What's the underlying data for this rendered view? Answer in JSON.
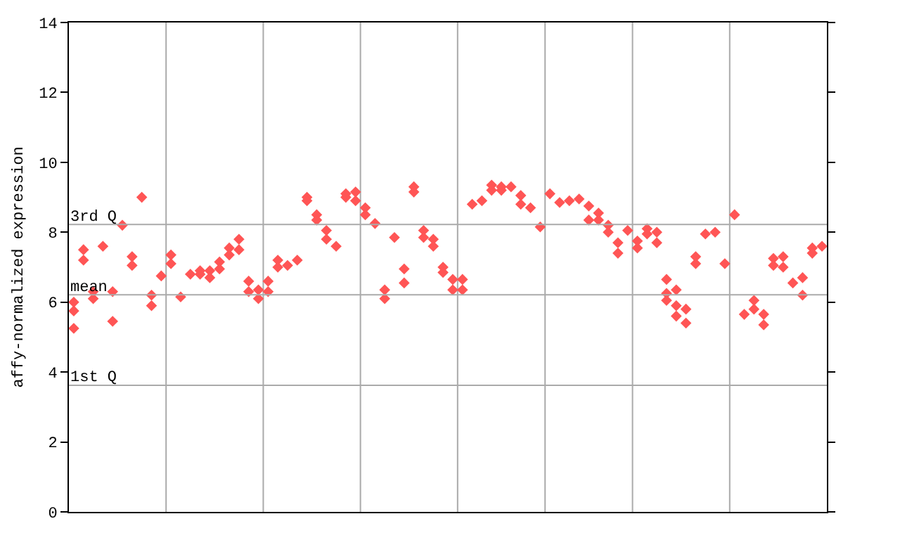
{
  "chart_data": {
    "type": "scatter",
    "ylabel": "affy-normalized expression",
    "categories": [
      null,
      null,
      null,
      null,
      null,
      null,
      null,
      null,
      null,
      null,
      null,
      null,
      null,
      null,
      null,
      null,
      null,
      null,
      null,
      null,
      null,
      null,
      null,
      null,
      null,
      null,
      null,
      null,
      null,
      null,
      null,
      null,
      null,
      null,
      null,
      null,
      null,
      null,
      null,
      null,
      null,
      null,
      null,
      null,
      null,
      null,
      null,
      null,
      null,
      null,
      null,
      null,
      null,
      null,
      null,
      null,
      null,
      null,
      null,
      null,
      null,
      null,
      null,
      null,
      null,
      null,
      null,
      null,
      null,
      null,
      null,
      null,
      null,
      null,
      null,
      null,
      null,
      null
    ],
    "ylim": [
      0,
      14
    ],
    "yticks": [
      0,
      2,
      4,
      6,
      8,
      10,
      12,
      14
    ],
    "tick_labels": "y",
    "marker": "diamond",
    "ref_lines": [
      {
        "axis": "y",
        "value": 8.22,
        "label": "3rd Q",
        "color": "#aaaaaa"
      },
      {
        "axis": "y",
        "value": 6.21,
        "label": "mean",
        "color": "#aaaaaa"
      },
      {
        "axis": "y",
        "value": 3.62,
        "label": "1st Q",
        "color": "#aaaaaa"
      }
    ],
    "series": [
      {
        "color": "#ff5555",
        "values": [
          6.0,
          7.5,
          6.1,
          7.6,
          6.3,
          8.2,
          7.3,
          9.0,
          6.2,
          6.75,
          7.35,
          6.15,
          6.8,
          6.8,
          6.9,
          7.15,
          7.35,
          7.8,
          6.6,
          6.1,
          6.6,
          7.2,
          7.05,
          7.2,
          9.0,
          8.5,
          8.05,
          7.6,
          9.0,
          9.15,
          8.7,
          8.25,
          6.35,
          7.85,
          6.95,
          9.3,
          8.05,
          7.8,
          7.0,
          6.65,
          6.65,
          8.8,
          8.9,
          9.35,
          9.3,
          9.3,
          9.05,
          8.7,
          8.15,
          9.1,
          8.85,
          8.9,
          8.95,
          8.75,
          8.55,
          8.2,
          7.7,
          8.05,
          7.75,
          8.1,
          8.0,
          6.65,
          6.35,
          5.8,
          7.3,
          7.95,
          8.0,
          7.1,
          8.5,
          5.65,
          6.05,
          5.65,
          7.25,
          7.3,
          6.55,
          6.7,
          7.55,
          7.6
        ]
      },
      {
        "color": "#ff5555",
        "values": [
          5.75,
          7.2,
          6.3,
          null,
          5.45,
          null,
          7.05,
          null,
          5.9,
          null,
          7.1,
          null,
          null,
          6.9,
          6.7,
          6.95,
          7.55,
          7.5,
          6.3,
          6.35,
          6.3,
          7.0,
          null,
          null,
          8.9,
          8.35,
          7.8,
          null,
          9.1,
          8.9,
          8.5,
          null,
          6.1,
          null,
          6.55,
          9.15,
          7.85,
          7.6,
          6.85,
          6.35,
          6.35,
          null,
          null,
          9.2,
          9.2,
          null,
          8.8,
          null,
          null,
          null,
          null,
          null,
          null,
          8.35,
          8.35,
          8.0,
          7.4,
          null,
          7.55,
          7.95,
          7.7,
          6.25,
          5.9,
          5.4,
          7.1,
          null,
          null,
          null,
          null,
          null,
          5.8,
          5.35,
          7.05,
          7.0,
          null,
          6.2,
          7.4,
          null
        ]
      },
      {
        "color": "#ff5555",
        "values": [
          5.25,
          null,
          null,
          null,
          null,
          null,
          null,
          null,
          null,
          null,
          null,
          null,
          null,
          null,
          null,
          null,
          null,
          null,
          null,
          null,
          null,
          null,
          null,
          null,
          null,
          null,
          null,
          null,
          null,
          null,
          null,
          null,
          null,
          null,
          null,
          null,
          null,
          null,
          null,
          null,
          null,
          null,
          null,
          null,
          null,
          null,
          null,
          null,
          null,
          null,
          null,
          null,
          null,
          null,
          null,
          null,
          null,
          null,
          null,
          null,
          null,
          6.05,
          5.6,
          null,
          null,
          null,
          null,
          null,
          null,
          null,
          null,
          null,
          null,
          null,
          null,
          null,
          null,
          null
        ]
      }
    ]
  }
}
